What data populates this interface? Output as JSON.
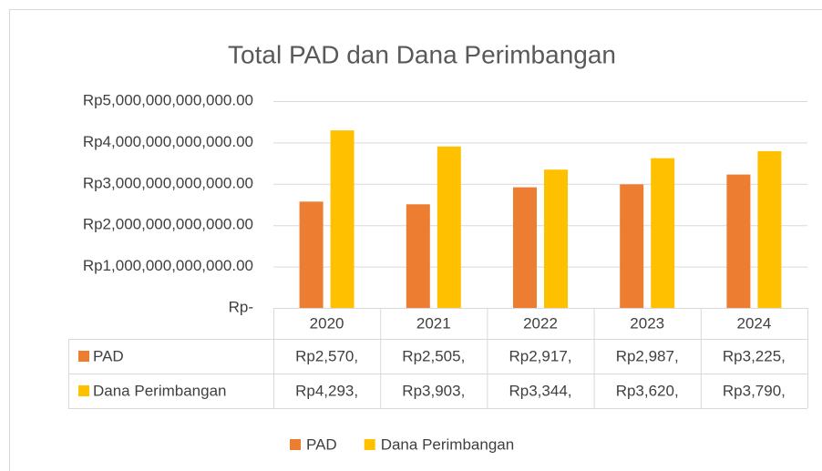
{
  "chart_data": {
    "type": "bar",
    "title": "Total PAD dan Dana Perimbangan",
    "categories": [
      "2020",
      "2021",
      "2022",
      "2023",
      "2024"
    ],
    "series": [
      {
        "name": "PAD",
        "color": "#ed7d31",
        "values": [
          2570000000000,
          2505000000000,
          2917000000000,
          2987000000000,
          3225000000000
        ],
        "value_labels": [
          "Rp2,570,",
          "Rp2,505,",
          "Rp2,917,",
          "Rp2,987,",
          "Rp3,225,"
        ]
      },
      {
        "name": "Dana Perimbangan",
        "color": "#ffc000",
        "values": [
          4293000000000,
          3903000000000,
          3344000000000,
          3620000000000,
          3790000000000
        ],
        "value_labels": [
          "Rp4,293,",
          "Rp3,903,",
          "Rp3,344,",
          "Rp3,620,",
          "Rp3,790,"
        ]
      }
    ],
    "ylim": [
      0,
      5000000000000
    ],
    "yticks": [
      {
        "value": 0,
        "label": "Rp-"
      },
      {
        "value": 1000000000000,
        "label": "Rp1,000,000,000,000.00"
      },
      {
        "value": 2000000000000,
        "label": "Rp2,000,000,000,000.00"
      },
      {
        "value": 3000000000000,
        "label": "Rp3,000,000,000,000.00"
      },
      {
        "value": 4000000000000,
        "label": "Rp4,000,000,000,000.00"
      },
      {
        "value": 5000000000000,
        "label": "Rp5,000,000,000,000.00"
      }
    ],
    "grid": true,
    "legend": "bottom"
  }
}
